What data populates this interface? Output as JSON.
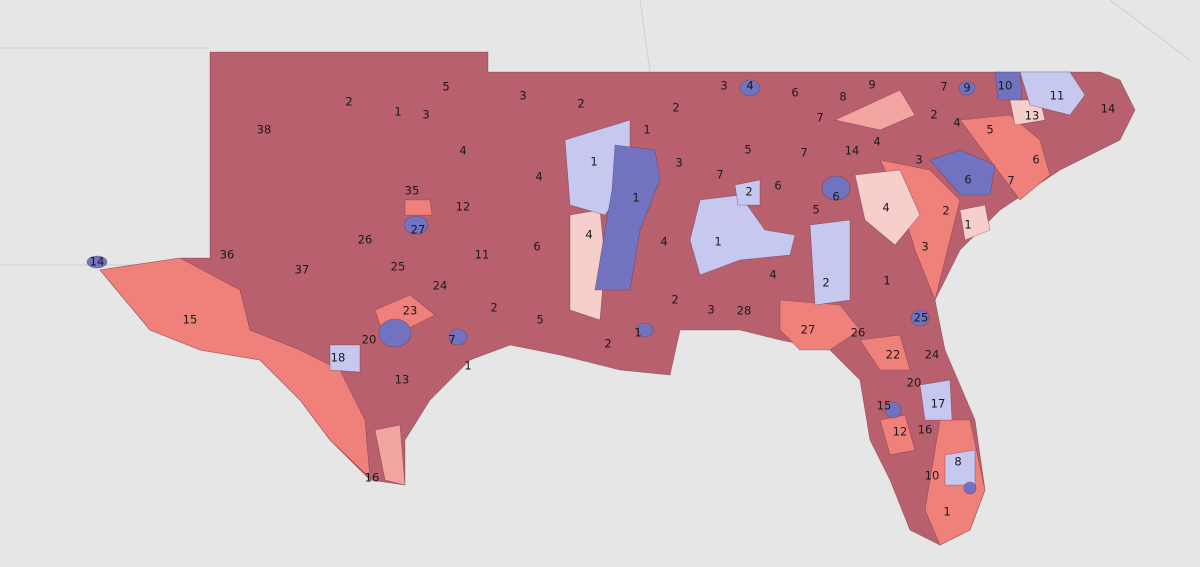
{
  "map": {
    "district_labels": [
      "2",
      "1",
      "3",
      "5",
      "4",
      "38",
      "35",
      "12",
      "26",
      "27",
      "36",
      "37",
      "25",
      "11",
      "24",
      "2",
      "23",
      "20",
      "7",
      "1",
      "18",
      "13",
      "15",
      "14",
      "16",
      "3",
      "2",
      "4",
      "6",
      "5",
      "2",
      "1",
      "4",
      "1",
      "1",
      "1",
      "3",
      "4",
      "2",
      "7",
      "5",
      "2",
      "6",
      "1",
      "3",
      "28",
      "4",
      "2",
      "3",
      "4",
      "6",
      "7",
      "8",
      "9",
      "7",
      "14",
      "6",
      "5",
      "1",
      "2",
      "7",
      "9",
      "10",
      "11",
      "14",
      "5",
      "13",
      "2",
      "4",
      "6",
      "3",
      "6",
      "7",
      "4",
      "2",
      "1",
      "3",
      "4",
      "27",
      "26",
      "22",
      "25",
      "24",
      "20",
      "17",
      "15",
      "12",
      "16",
      "10",
      "8",
      "1"
    ]
  }
}
